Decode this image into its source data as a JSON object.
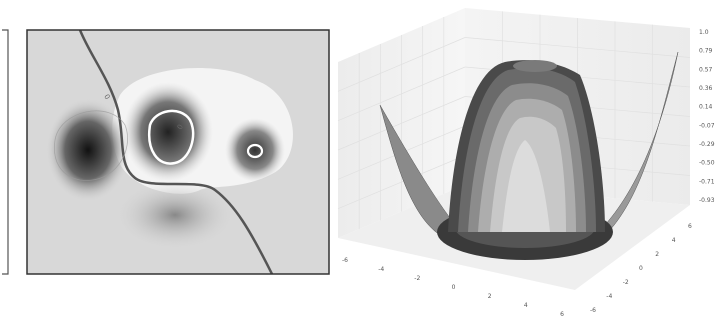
{
  "chart_data": [
    {
      "type": "heatmap",
      "title": "",
      "xlabel": "",
      "ylabel": "",
      "colormap": "grayscale",
      "grid": false,
      "contour_labels": [
        "0",
        "0"
      ],
      "colors": {
        "background": "#d8d8d8",
        "frame": "#333333",
        "contour_dark": "#555555",
        "contour_light": "#ffffff"
      }
    },
    {
      "type": "surface",
      "title": "",
      "xlabel": "",
      "ylabel": "",
      "zlabel": "",
      "grid": true,
      "colormap": "grayscale",
      "x_tick_labels": [
        "-6",
        "-4",
        "-2",
        "0",
        "2",
        "4",
        "6"
      ],
      "y_tick_labels": [
        "-6",
        "-4",
        "-2",
        "0",
        "2",
        "4",
        "6"
      ],
      "z_tick_labels": [
        "1.0",
        "0.79",
        "0.57",
        "0.36",
        "0.14",
        "-0.07",
        "-0.29",
        "-0.50",
        "-0.71",
        "-0.93"
      ],
      "zlim": [
        -0.93,
        1.0
      ],
      "colors": {
        "pane": "#f2f2f2",
        "gridline": "#e0e0e0",
        "surface_dark": "#3a3a3a",
        "surface_light": "#d0d0d0"
      }
    }
  ]
}
